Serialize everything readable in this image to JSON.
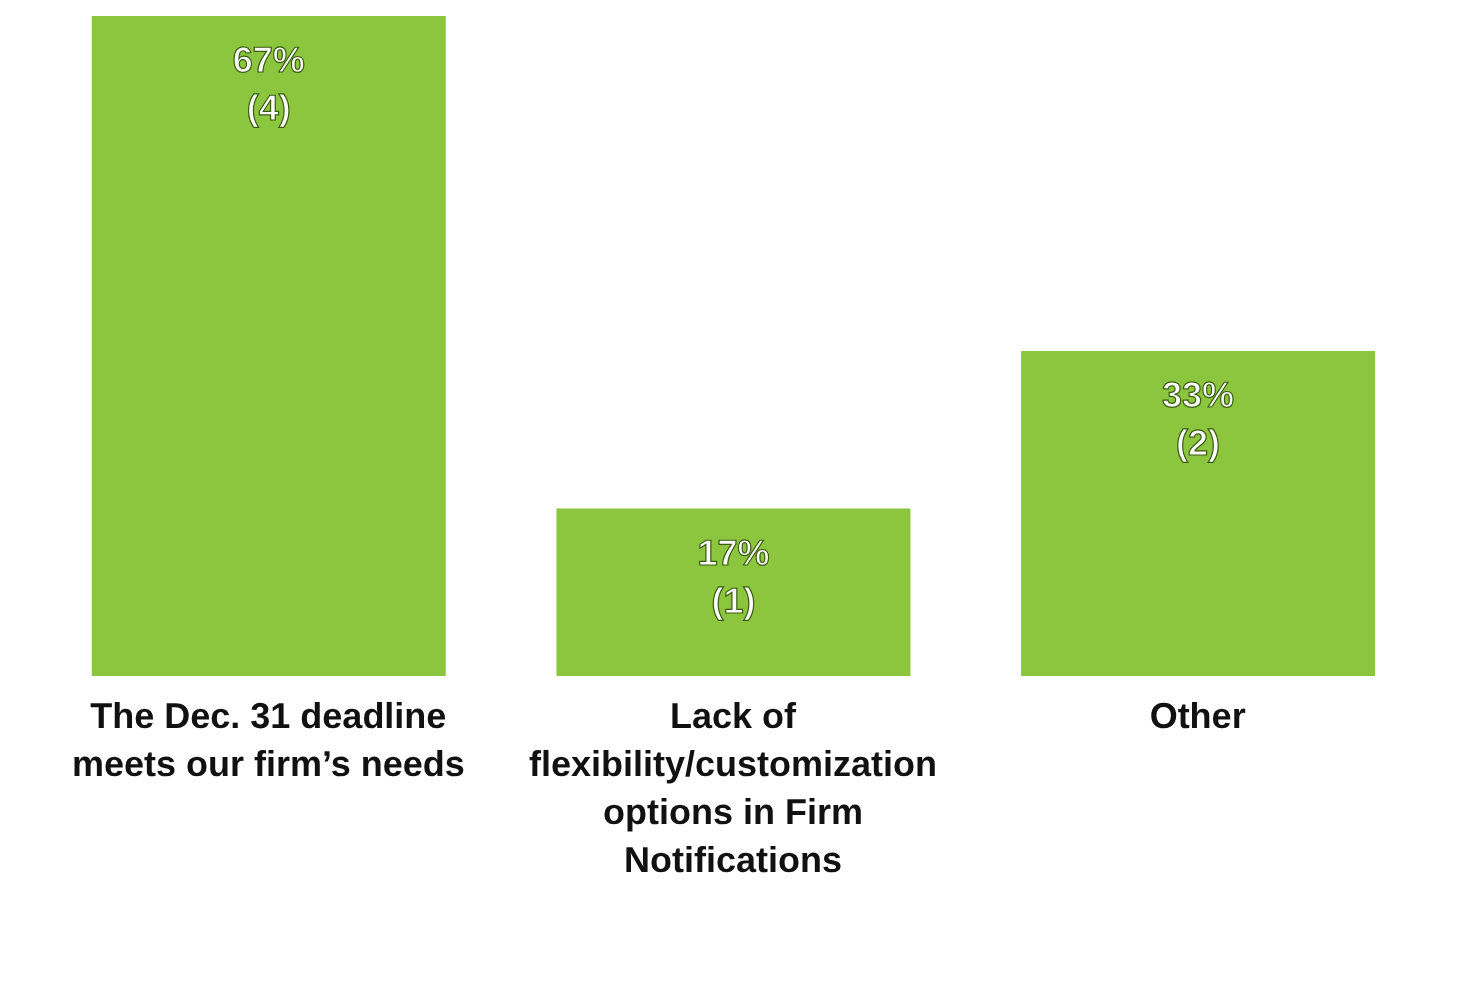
{
  "chart_data": {
    "type": "bar",
    "categories": [
      "The Dec. 31 deadline meets our firm’s needs",
      "Lack of flexibility/customization options in Firm Notifications",
      "Other"
    ],
    "values": [
      67,
      17,
      33
    ],
    "value_labels": [
      "67%\n(4)",
      "17%\n(1)",
      "33%\n(2)"
    ],
    "color": "#8cc63e",
    "ylim": [
      0,
      67
    ]
  }
}
